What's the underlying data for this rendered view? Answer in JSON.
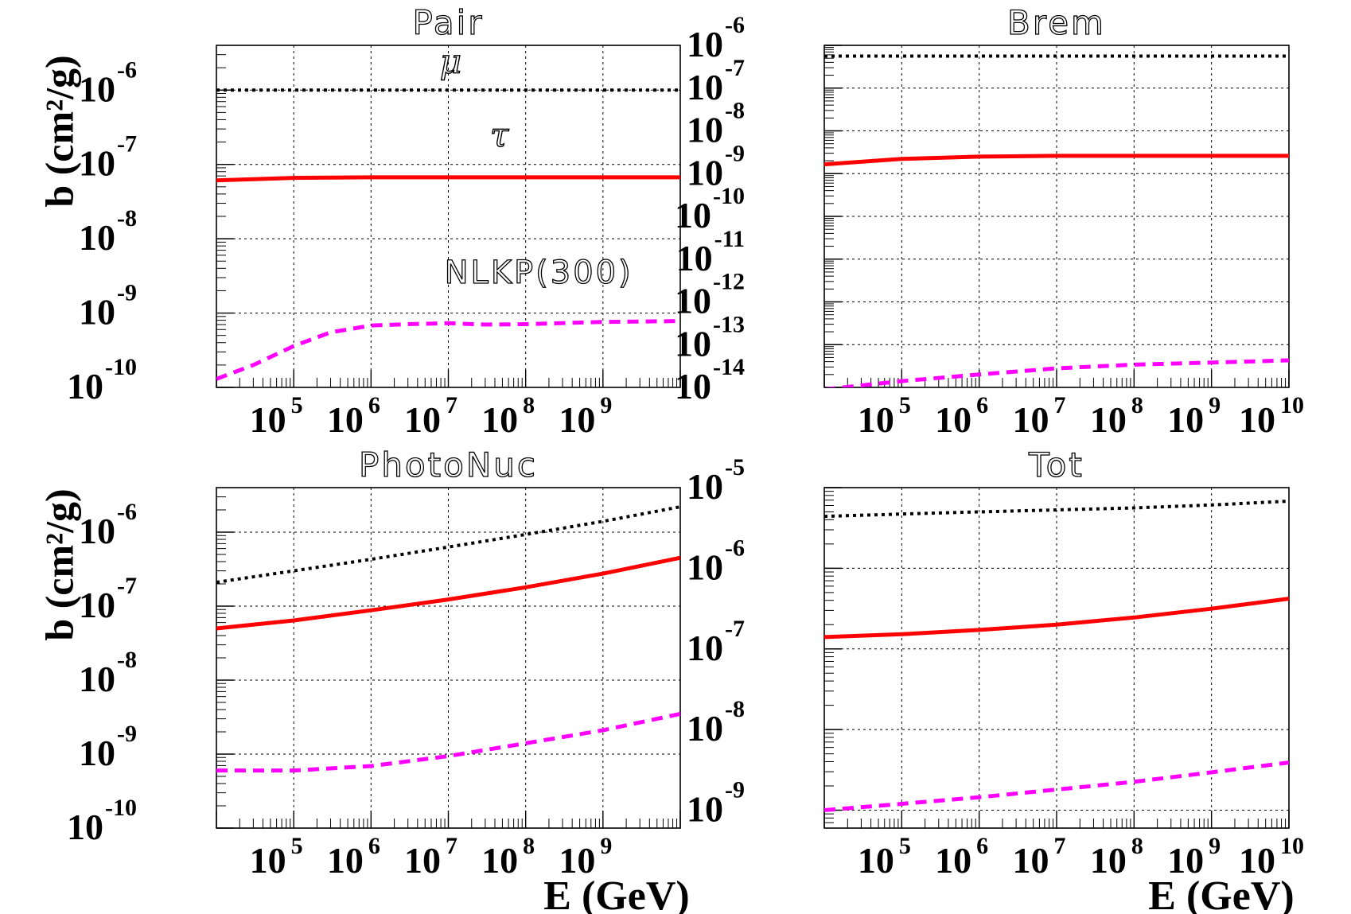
{
  "figure": {
    "ylabel": "b (cm²/g)",
    "xlabel": "E (GeV)"
  },
  "chart_data": [
    {
      "type": "line",
      "title": "Pair",
      "xlabel": "",
      "ylabel": "b (cm²/g)",
      "x_scale": "log",
      "y_scale": "log",
      "xlim": [
        10000,
        10000000000
      ],
      "ylim": [
        1e-10,
        4e-06
      ],
      "x_tick_labels": [
        "10^5",
        "10^6",
        "10^7",
        "10^8",
        "10^9"
      ],
      "y_tick_labels": [
        "10^-10",
        "10^-9",
        "10^-8",
        "10^-7",
        "10^-6"
      ],
      "annotations": [
        "μ",
        "τ",
        "NLKP(300)"
      ],
      "series": [
        {
          "name": "μ",
          "style": "dotted",
          "color": "#000000",
          "x": [
            10000,
            100000,
            1000000,
            10000000,
            100000000,
            1000000000,
            10000000000
          ],
          "y": [
            1e-06,
            1e-06,
            1e-06,
            1e-06,
            1e-06,
            1e-06,
            1e-06
          ]
        },
        {
          "name": "τ",
          "style": "solid",
          "color": "#ff0000",
          "x": [
            10000,
            100000,
            1000000,
            10000000,
            100000000,
            1000000000,
            10000000000
          ],
          "y": [
            6.1e-08,
            6.6e-08,
            6.7e-08,
            6.7e-08,
            6.7e-08,
            6.7e-08,
            6.7e-08
          ]
        },
        {
          "name": "NLKP(300)",
          "style": "dashed",
          "color": "#ff00ff",
          "x": [
            10000,
            30000,
            100000,
            300000,
            1000000,
            3000000,
            10000000,
            30000000,
            100000000,
            1000000000,
            10000000000
          ],
          "y": [
            1.3e-10,
            2e-10,
            3.6e-10,
            5.5e-10,
            6.8e-10,
            7.1e-10,
            7.3e-10,
            7e-10,
            7.1e-10,
            7.6e-10,
            7.8e-10
          ]
        }
      ]
    },
    {
      "type": "line",
      "title": "Brem",
      "xlabel": "",
      "ylabel": "",
      "x_scale": "log",
      "y_scale": "log",
      "xlim": [
        10000,
        10000000000
      ],
      "ylim": [
        1e-14,
        1e-06
      ],
      "x_tick_labels": [
        "10^5",
        "10^6",
        "10^7",
        "10^8",
        "10^9",
        "10^10"
      ],
      "y_tick_labels": [
        "10^-14",
        "10^-13",
        "10^-12",
        "10^-11",
        "10^-10",
        "10^-9",
        "10^-8",
        "10^-7",
        "10^-6"
      ],
      "series": [
        {
          "name": "",
          "style": "dotted",
          "color": "#000000",
          "x": [
            10000,
            100000,
            1000000,
            10000000,
            100000000,
            1000000000,
            10000000000
          ],
          "y": [
            5.6e-07,
            5.6e-07,
            5.6e-07,
            5.6e-07,
            5.6e-07,
            5.6e-07,
            5.6e-07
          ]
        },
        {
          "name": "",
          "style": "solid",
          "color": "#ff0000",
          "x": [
            10000,
            100000,
            1000000,
            10000000,
            100000000,
            1000000000,
            10000000000
          ],
          "y": [
            1.65e-09,
            2.2e-09,
            2.5e-09,
            2.6e-09,
            2.6e-09,
            2.6e-09,
            2.6e-09
          ]
        },
        {
          "name": "",
          "style": "dashed",
          "color": "#ff00ff",
          "x": [
            10000,
            100000,
            1000000,
            10000000,
            100000000,
            1000000000,
            10000000000
          ],
          "y": [
            9e-15,
            1.4e-14,
            2e-14,
            2.8e-14,
            3.4e-14,
            3.8e-14,
            4.3e-14
          ]
        }
      ]
    },
    {
      "type": "line",
      "title": "PhotoNuc",
      "xlabel": "E (GeV)",
      "ylabel": "b (cm²/g)",
      "x_scale": "log",
      "y_scale": "log",
      "xlim": [
        10000,
        10000000000
      ],
      "ylim": [
        1e-10,
        4e-06
      ],
      "x_tick_labels": [
        "10^5",
        "10^6",
        "10^7",
        "10^8",
        "10^9"
      ],
      "y_tick_labels": [
        "10^-10",
        "10^-9",
        "10^-8",
        "10^-7",
        "10^-6"
      ],
      "series": [
        {
          "name": "",
          "style": "dotted",
          "color": "#000000",
          "x": [
            10000,
            100000,
            1000000,
            10000000,
            100000000,
            1000000000,
            10000000000
          ],
          "y": [
            2.1e-07,
            3e-07,
            4.3e-07,
            6.3e-07,
            9.3e-07,
            1.4e-06,
            2.2e-06
          ]
        },
        {
          "name": "",
          "style": "solid",
          "color": "#ff0000",
          "x": [
            10000,
            100000,
            1000000,
            10000000,
            100000000,
            1000000000,
            10000000000
          ],
          "y": [
            5e-08,
            6.4e-08,
            8.8e-08,
            1.23e-07,
            1.8e-07,
            2.75e-07,
            4.5e-07
          ]
        },
        {
          "name": "",
          "style": "dashed",
          "color": "#ff00ff",
          "x": [
            10000,
            100000,
            1000000,
            10000000,
            100000000,
            1000000000,
            10000000000
          ],
          "y": [
            6e-10,
            6e-10,
            6.9e-10,
            9.4e-10,
            1.4e-09,
            2.1e-09,
            3.5e-09
          ]
        }
      ]
    },
    {
      "type": "line",
      "title": "Tot",
      "xlabel": "E (GeV)",
      "ylabel": "",
      "x_scale": "log",
      "y_scale": "log",
      "xlim": [
        10000,
        10000000000
      ],
      "ylim": [
        6e-10,
        1e-05
      ],
      "x_tick_labels": [
        "10^5",
        "10^6",
        "10^7",
        "10^8",
        "10^9",
        "10^10"
      ],
      "y_tick_labels": [
        "10^-9",
        "10^-8",
        "10^-7",
        "10^-6",
        "10^-5"
      ],
      "series": [
        {
          "name": "",
          "style": "dotted",
          "color": "#000000",
          "x": [
            10000,
            100000,
            1000000,
            10000000,
            100000000,
            1000000000,
            10000000000
          ],
          "y": [
            4.4e-06,
            4.7e-06,
            5e-06,
            5.3e-06,
            5.6e-06,
            6.1e-06,
            6.8e-06
          ]
        },
        {
          "name": "",
          "style": "solid",
          "color": "#ff0000",
          "x": [
            10000,
            100000,
            1000000,
            10000000,
            100000000,
            1000000000,
            10000000000
          ],
          "y": [
            1.4e-07,
            1.52e-07,
            1.72e-07,
            2e-07,
            2.45e-07,
            3.15e-07,
            4.2e-07
          ]
        },
        {
          "name": "",
          "style": "dashed",
          "color": "#ff00ff",
          "x": [
            10000,
            100000,
            1000000,
            10000000,
            100000000,
            1000000000,
            10000000000
          ],
          "y": [
            1e-09,
            1.2e-09,
            1.45e-09,
            1.8e-09,
            2.25e-09,
            2.95e-09,
            3.9e-09
          ]
        }
      ]
    }
  ]
}
